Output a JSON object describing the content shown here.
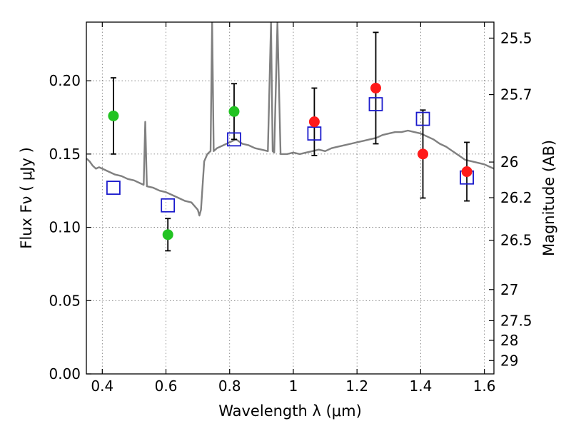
{
  "chart_data": {
    "type": "scatter",
    "xlabel": "Wavelength  λ (μm)",
    "ylabel": "Flux  Fν  ( μJy )",
    "y2label": "Magnitude (AB)",
    "xlim": [
      0.35,
      1.63
    ],
    "ylim": [
      0.0,
      0.24
    ],
    "grid": true,
    "x_ticks": [
      0.4,
      0.6,
      0.8,
      1.0,
      1.2,
      1.4,
      1.6
    ],
    "x_tick_labels": [
      "0.4",
      "0.6",
      "0.8",
      "1",
      "1.2",
      "1.4",
      "1.6"
    ],
    "y_ticks": [
      0.0,
      0.05,
      0.1,
      0.15,
      0.2
    ],
    "y_tick_labels": [
      "0.00",
      "0.05",
      "0.10",
      "0.15",
      "0.20"
    ],
    "y2_tick_labels": [
      "25.5",
      "25.7",
      "26",
      "26.2",
      "26.5",
      "27",
      "27.5",
      "28",
      "29"
    ],
    "colors": {
      "template": "#808080",
      "hst_points": "#22c322",
      "ground_points": "#ff1a1a",
      "model_boxes": "#1a1acc",
      "error_bars": "#000000"
    },
    "series": [
      {
        "marker": "circle",
        "color": "#22c322",
        "x": [
          0.435,
          0.606,
          0.814
        ],
        "y": [
          0.176,
          0.095,
          0.179
        ],
        "yerr": [
          0.026,
          0.011,
          0.019
        ]
      },
      {
        "marker": "circle",
        "color": "#ff1a1a",
        "x": [
          1.066,
          1.259,
          1.407,
          1.545
        ],
        "y": [
          0.172,
          0.195,
          0.15,
          0.138
        ],
        "yerr": [
          0.023,
          0.038,
          0.03,
          0.02
        ]
      },
      {
        "marker": "open-square",
        "color": "#1a1acc",
        "x": [
          0.435,
          0.606,
          0.814,
          1.066,
          1.259,
          1.407,
          1.545
        ],
        "y": [
          0.127,
          0.115,
          0.16,
          0.164,
          0.184,
          0.174,
          0.134
        ]
      },
      {
        "marker": "line",
        "color": "#808080",
        "x": [
          0.35,
          0.36,
          0.37,
          0.38,
          0.39,
          0.4,
          0.42,
          0.44,
          0.46,
          0.48,
          0.5,
          0.52,
          0.53,
          0.535,
          0.54,
          0.56,
          0.58,
          0.6,
          0.62,
          0.64,
          0.66,
          0.68,
          0.7,
          0.705,
          0.71,
          0.72,
          0.73,
          0.74,
          0.745,
          0.75,
          0.76,
          0.78,
          0.8,
          0.82,
          0.84,
          0.86,
          0.88,
          0.9,
          0.92,
          0.93,
          0.935,
          0.94,
          0.95,
          0.96,
          0.98,
          1.0,
          1.02,
          1.04,
          1.06,
          1.08,
          1.1,
          1.12,
          1.14,
          1.16,
          1.18,
          1.2,
          1.22,
          1.24,
          1.26,
          1.28,
          1.3,
          1.32,
          1.34,
          1.36,
          1.38,
          1.4,
          1.42,
          1.44,
          1.46,
          1.48,
          1.5,
          1.52,
          1.54,
          1.56,
          1.58,
          1.6,
          1.62,
          1.63
        ],
        "y": [
          0.147,
          0.145,
          0.142,
          0.14,
          0.141,
          0.14,
          0.138,
          0.136,
          0.135,
          0.133,
          0.132,
          0.13,
          0.129,
          0.172,
          0.128,
          0.127,
          0.125,
          0.124,
          0.122,
          0.12,
          0.118,
          0.117,
          0.112,
          0.108,
          0.112,
          0.145,
          0.15,
          0.152,
          0.24,
          0.152,
          0.154,
          0.156,
          0.158,
          0.16,
          0.157,
          0.156,
          0.154,
          0.153,
          0.152,
          0.24,
          0.152,
          0.151,
          0.24,
          0.15,
          0.15,
          0.151,
          0.15,
          0.151,
          0.152,
          0.153,
          0.152,
          0.154,
          0.155,
          0.156,
          0.157,
          0.158,
          0.159,
          0.16,
          0.161,
          0.163,
          0.164,
          0.165,
          0.165,
          0.166,
          0.165,
          0.164,
          0.162,
          0.16,
          0.157,
          0.155,
          0.152,
          0.149,
          0.146,
          0.145,
          0.144,
          0.143,
          0.141,
          0.14
        ]
      }
    ]
  }
}
